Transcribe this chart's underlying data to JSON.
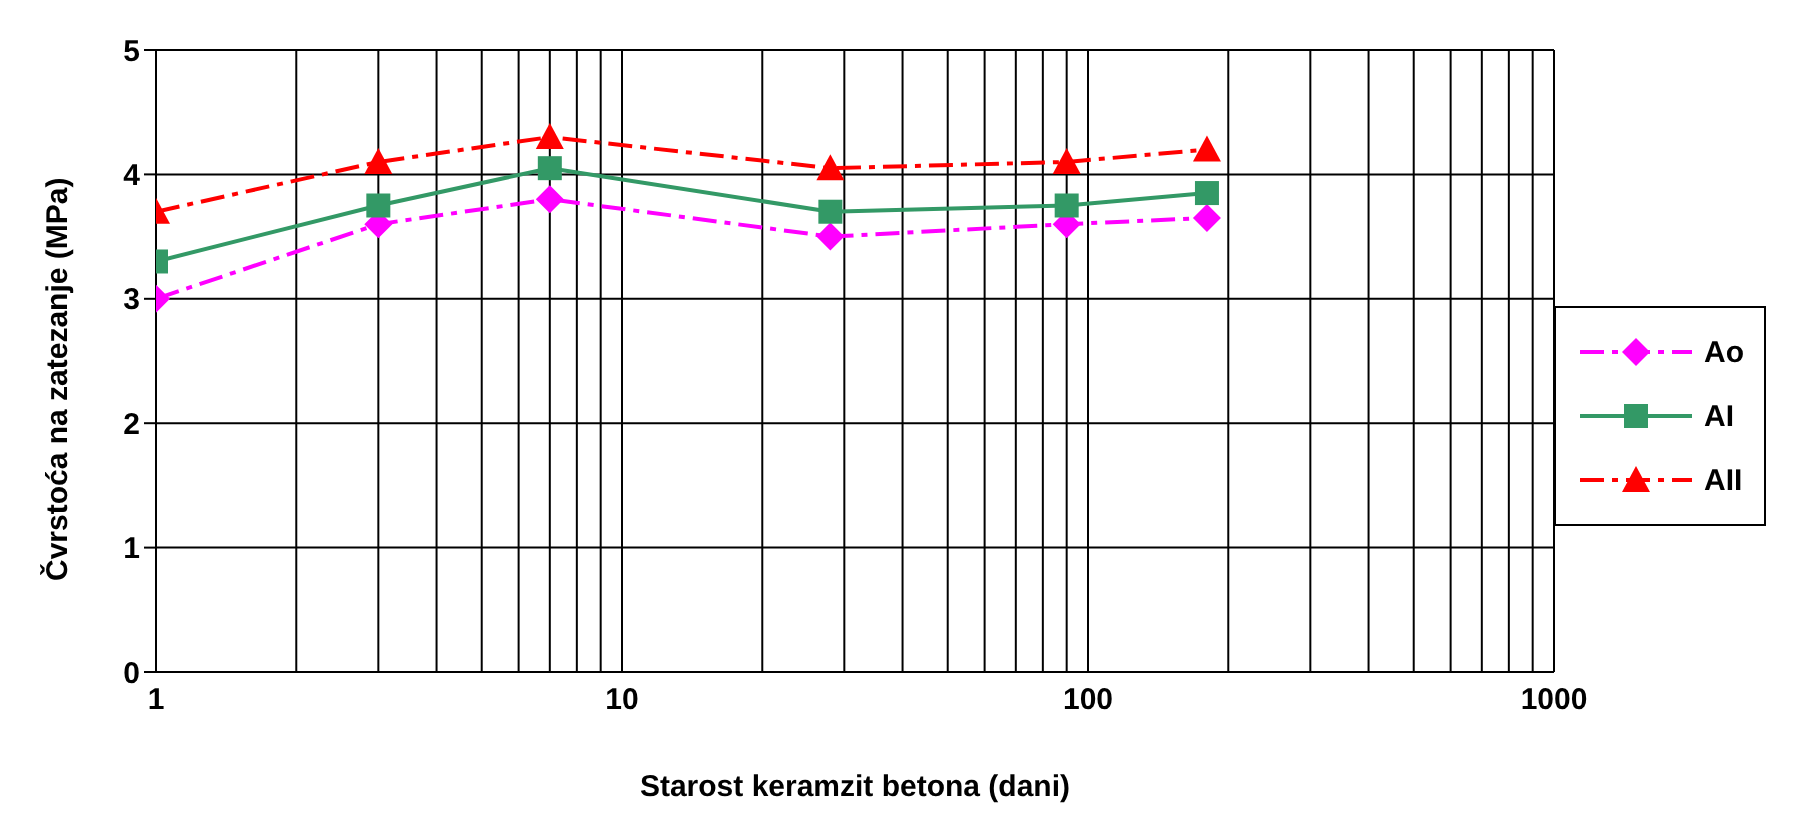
{
  "chart_data": {
    "type": "line",
    "xlabel": "Starost keramzit betona (dani)",
    "ylabel": "Čvrstoća na zatezanje (MPa)",
    "log": "x",
    "x": [
      1,
      3,
      7,
      28,
      90,
      180
    ],
    "xlim": [
      1,
      1000
    ],
    "xticks": [
      1,
      {
        "value": 2,
        "label": null
      },
      {
        "value": 3,
        "label": null
      },
      {
        "value": 4,
        "label": null
      },
      {
        "value": 5,
        "label": null
      },
      {
        "value": 6,
        "label": null
      },
      {
        "value": 7,
        "label": null
      },
      {
        "value": 8,
        "label": null
      },
      {
        "value": 9,
        "label": null
      },
      10,
      {
        "value": 20,
        "label": null
      },
      {
        "value": 30,
        "label": null
      },
      {
        "value": 40,
        "label": null
      },
      {
        "value": 50,
        "label": null
      },
      {
        "value": 60,
        "label": null
      },
      {
        "value": 70,
        "label": null
      },
      {
        "value": 80,
        "label": null
      },
      {
        "value": 90,
        "label": null
      },
      100,
      {
        "value": 200,
        "label": null
      },
      {
        "value": 300,
        "label": null
      },
      {
        "value": 400,
        "label": null
      },
      {
        "value": 500,
        "label": null
      },
      {
        "value": 600,
        "label": null
      },
      {
        "value": 700,
        "label": null
      },
      {
        "value": 800,
        "label": null
      },
      {
        "value": 900,
        "label": null
      },
      1000
    ],
    "ylim": [
      0,
      5
    ],
    "yticks": [
      0,
      1,
      2,
      3,
      4,
      5
    ],
    "grid": true,
    "legend": "right",
    "series": [
      {
        "name": "Ao",
        "color": "#ff00ff",
        "marker": "diamond",
        "line_style": "dashed",
        "values": [
          3.0,
          3.6,
          3.8,
          3.5,
          3.6,
          3.65
        ]
      },
      {
        "name": "AI",
        "color": "#339966",
        "marker": "square",
        "line_style": "solid",
        "values": [
          3.3,
          3.75,
          4.05,
          3.7,
          3.75,
          3.85
        ]
      },
      {
        "name": "AII",
        "color": "#ff0000",
        "marker": "triangle",
        "line_style": "dashed",
        "values": [
          3.7,
          4.1,
          4.3,
          4.05,
          4.1,
          4.2
        ]
      }
    ]
  }
}
